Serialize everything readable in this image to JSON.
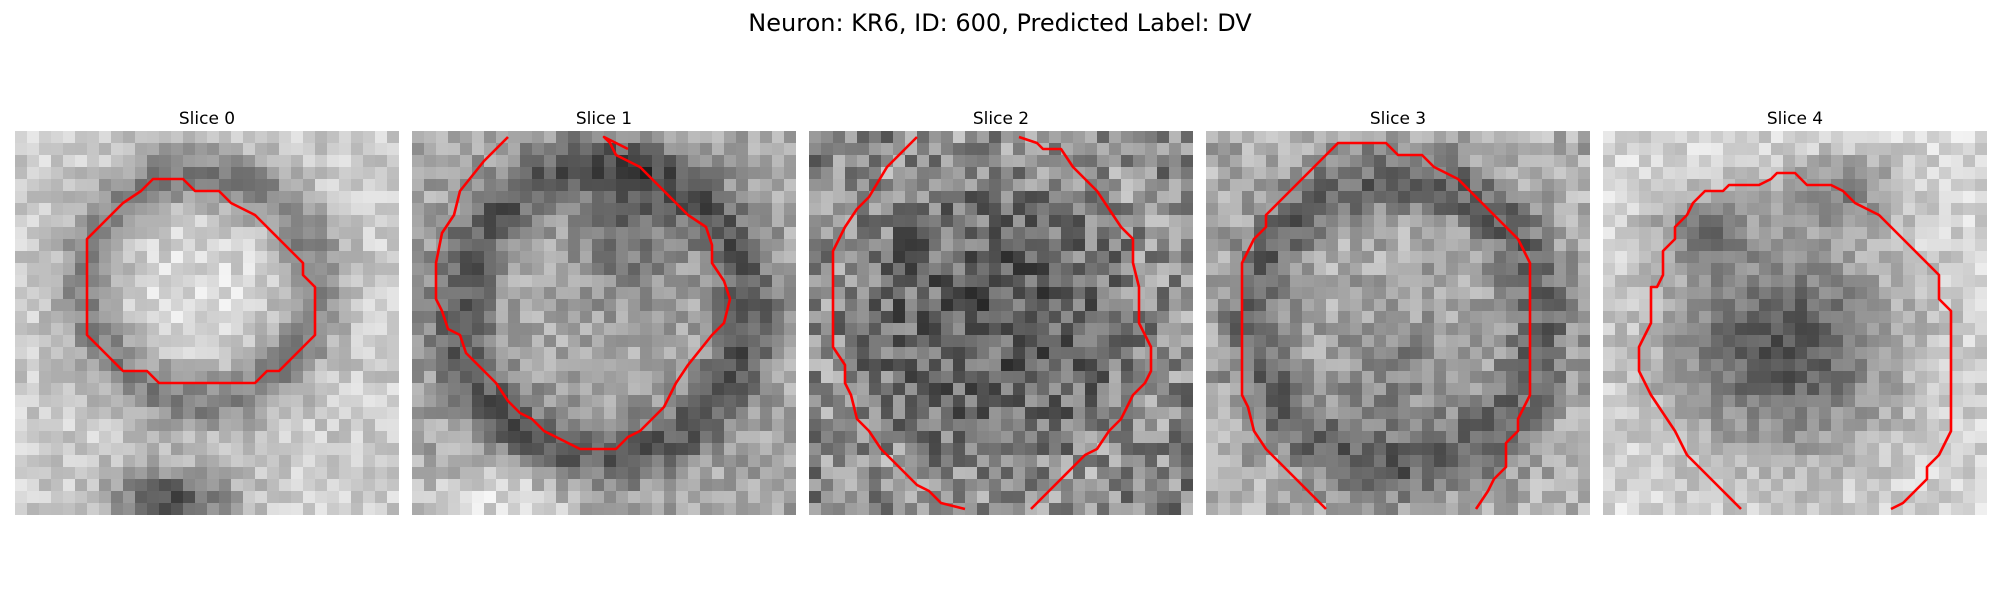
{
  "figure": {
    "title": "Neuron: KR6, ID: 600, Predicted Label: DV",
    "contour_color": "#ff0000"
  },
  "panels": [
    {
      "label": "Slice 0"
    },
    {
      "label": "Slice 1"
    },
    {
      "label": "Slice 2"
    },
    {
      "label": "Slice 3"
    },
    {
      "label": "Slice 4"
    }
  ]
}
